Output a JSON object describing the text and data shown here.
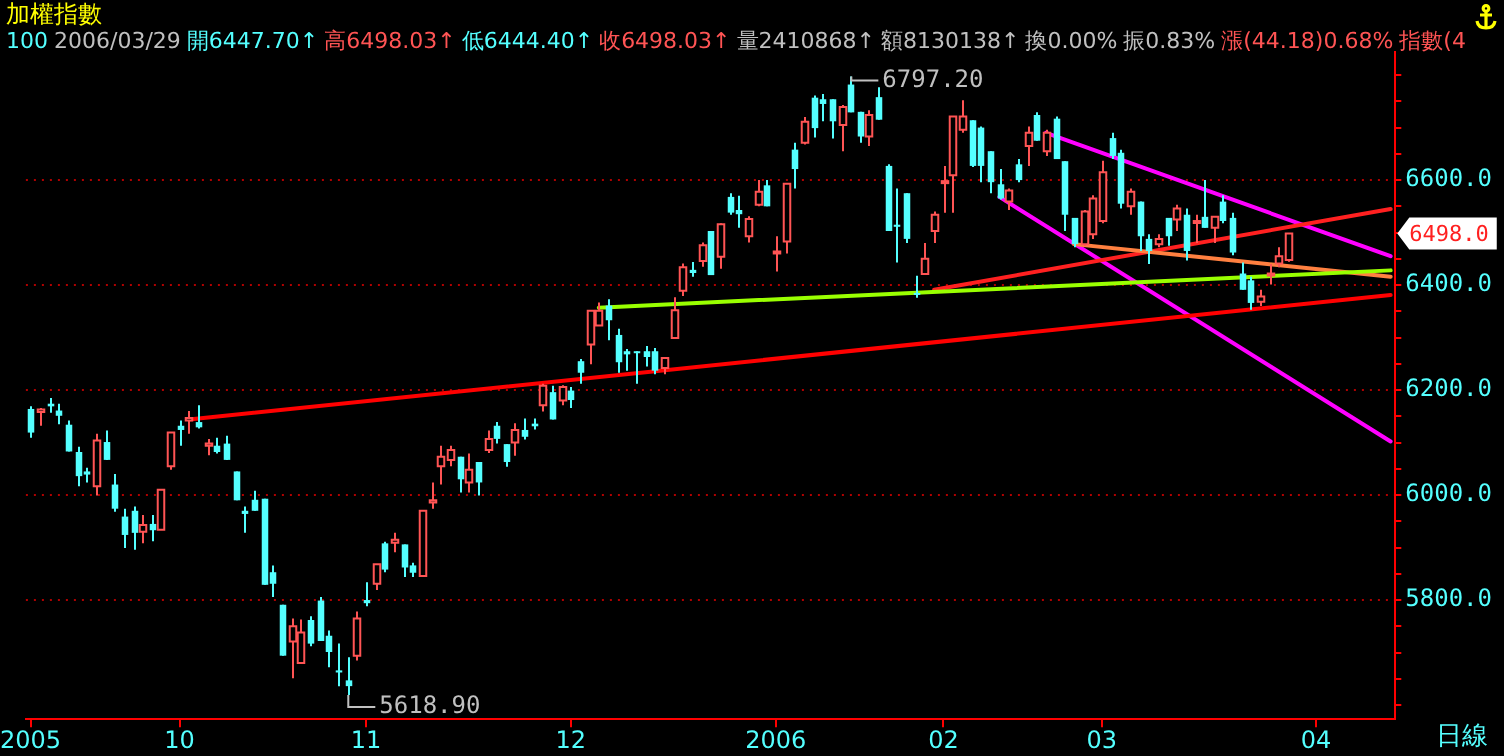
{
  "chart_data": {
    "type": "candlestick",
    "title": "加權指數",
    "xlabel": "日線",
    "subtitle": "100 2006/03/29 開6447.70↑高6498.03↑低6444.40↑收6498.03↑量2410868↑額8130138↑換0.00% 振0.83% 漲(44.18)0.68% 指數(4",
    "annotations": [
      "6797.20",
      "5618.90",
      "6498.0"
    ],
    "categories": [
      "2005",
      null,
      null,
      null,
      null,
      null,
      null,
      null,
      null,
      null,
      null,
      null,
      null,
      null,
      null,
      null,
      "10",
      null,
      null,
      null,
      null,
      null,
      null,
      null,
      null,
      null,
      null,
      null,
      null,
      null,
      null,
      null,
      null,
      null,
      null,
      null,
      "11",
      null,
      null,
      null,
      null,
      null,
      null,
      null,
      null,
      null,
      null,
      null,
      null,
      null,
      null,
      null,
      null,
      null,
      null,
      null,
      null,
      null,
      "12",
      null,
      null,
      null,
      null,
      null,
      null,
      null,
      null,
      null,
      null,
      null,
      null,
      null,
      null,
      null,
      null,
      null,
      null,
      null,
      null,
      null,
      "2006",
      null,
      null,
      null,
      null,
      null,
      null,
      null,
      null,
      null,
      null,
      null,
      null,
      null,
      null,
      null,
      null,
      null,
      "02",
      null,
      null,
      null,
      null,
      null,
      null,
      null,
      null,
      null,
      null,
      null,
      null,
      null,
      null,
      null,
      null,
      "03",
      null,
      null,
      null,
      null,
      null,
      null,
      null,
      null,
      null,
      null,
      null,
      null,
      null,
      null,
      null,
      null,
      null,
      null,
      null,
      null,
      null,
      null,
      "04",
      null,
      null,
      null,
      null,
      null,
      null,
      null,
      null
    ],
    "ohlc": [
      [
        6164,
        6169,
        6109,
        6119
      ],
      [
        6158,
        6166,
        6132,
        6163
      ],
      [
        6174,
        6185,
        6157,
        6169
      ],
      [
        6161,
        6174,
        6135,
        6151
      ],
      [
        6134,
        6142,
        6083,
        6083
      ],
      [
        6082,
        6092,
        6017,
        6036
      ],
      [
        6045,
        6052,
        6024,
        6039
      ],
      [
        6017,
        6117,
        5999,
        6104
      ],
      [
        6101,
        6123,
        6067,
        6067
      ],
      [
        6020,
        6040,
        5968,
        5974
      ],
      [
        5959,
        5974,
        5899,
        5924
      ],
      [
        5970,
        5978,
        5896,
        5928
      ],
      [
        5930,
        5962,
        5908,
        5943
      ],
      [
        5945,
        5962,
        5912,
        5933
      ],
      [
        5934,
        6010,
        5934,
        6010
      ],
      [
        6055,
        6119,
        6048,
        6119
      ],
      [
        6132,
        6142,
        6094,
        6124
      ],
      [
        6142,
        6160,
        6117,
        6147
      ],
      [
        6139,
        6171,
        6127,
        6129
      ],
      [
        6094,
        6107,
        6076,
        6098
      ],
      [
        6094,
        6109,
        6079,
        6082
      ],
      [
        6098,
        6113,
        6067,
        6067
      ],
      [
        6045,
        6045,
        5990,
        5990
      ],
      [
        5970,
        5978,
        5928,
        5964
      ],
      [
        5991,
        6008,
        5970,
        5970
      ],
      [
        5993,
        5993,
        5829,
        5829
      ],
      [
        5853,
        5866,
        5806,
        5831
      ],
      [
        5791,
        5791,
        5694,
        5694
      ],
      [
        5721,
        5765,
        5651,
        5750
      ],
      [
        5680,
        5763,
        5680,
        5738
      ],
      [
        5762,
        5769,
        5712,
        5717
      ],
      [
        5799,
        5806,
        5722,
        5722
      ],
      [
        5732,
        5742,
        5672,
        5701
      ],
      [
        5666,
        5717,
        5636,
        5662
      ],
      [
        5647,
        5691,
        5618.9,
        5636
      ],
      [
        5694,
        5778,
        5685,
        5765
      ],
      [
        5800,
        5834,
        5788,
        5794
      ],
      [
        5831,
        5868,
        5819,
        5868
      ],
      [
        5908,
        5911,
        5853,
        5858
      ],
      [
        5909,
        5928,
        5891,
        5915
      ],
      [
        5906,
        5906,
        5844,
        5862
      ],
      [
        5866,
        5871,
        5844,
        5852
      ],
      [
        5846,
        5970,
        5846,
        5970
      ],
      [
        5986,
        6024,
        5974,
        5990
      ],
      [
        6055,
        6094,
        6020,
        6073
      ],
      [
        6067,
        6094,
        6055,
        6086
      ],
      [
        6073,
        6073,
        6005,
        6030
      ],
      [
        6024,
        6079,
        6005,
        6048
      ],
      [
        6063,
        6063,
        5999,
        6024
      ],
      [
        6086,
        6123,
        6080,
        6107
      ],
      [
        6132,
        6139,
        6098,
        6107
      ],
      [
        6097,
        6097,
        6054,
        6063
      ],
      [
        6100,
        6137,
        6075,
        6124
      ],
      [
        6124,
        6146,
        6106,
        6111
      ],
      [
        6136,
        6146,
        6125,
        6131
      ],
      [
        6171,
        6212,
        6159,
        6208
      ],
      [
        6196,
        6208,
        6144,
        6144
      ],
      [
        6180,
        6209,
        6171,
        6206
      ],
      [
        6199,
        6206,
        6166,
        6181
      ],
      [
        6255,
        6259,
        6212,
        6233
      ],
      [
        6287,
        6351,
        6249,
        6351
      ],
      [
        6323,
        6367,
        6323,
        6351
      ],
      [
        6361,
        6373,
        6295,
        6333
      ],
      [
        6305,
        6317,
        6233,
        6253
      ],
      [
        6274,
        6278,
        6237,
        6268
      ],
      [
        6274,
        6274,
        6212,
        6271
      ],
      [
        6274,
        6284,
        6245,
        6263
      ],
      [
        6274,
        6280,
        6230,
        6237
      ],
      [
        6242,
        6261,
        6230,
        6261
      ],
      [
        6299,
        6377,
        6299,
        6352
      ],
      [
        6389,
        6441,
        6379,
        6434
      ],
      [
        6429,
        6444,
        6416,
        6423
      ],
      [
        6446,
        6481,
        6435,
        6476
      ],
      [
        6503,
        6503,
        6419,
        6419
      ],
      [
        6454,
        6518,
        6431,
        6516
      ],
      [
        6568,
        6575,
        6534,
        6538
      ],
      [
        6543,
        6570,
        6509,
        6535
      ],
      [
        6493,
        6531,
        6481,
        6526
      ],
      [
        6553,
        6600,
        6550,
        6578
      ],
      [
        6590,
        6600,
        6550,
        6550
      ],
      [
        6462,
        6493,
        6426,
        6464
      ],
      [
        6483,
        6593,
        6460,
        6593
      ],
      [
        6658,
        6671,
        6584,
        6621
      ],
      [
        6671,
        6720,
        6668,
        6711
      ],
      [
        6757,
        6761,
        6681,
        6699
      ],
      [
        6754,
        6764,
        6712,
        6745
      ],
      [
        6754,
        6754,
        6679,
        6712
      ],
      [
        6705,
        6743,
        6655,
        6739
      ],
      [
        6782,
        6797.2,
        6729,
        6729
      ],
      [
        6730,
        6730,
        6671,
        6683
      ],
      [
        6683,
        6733,
        6665,
        6724
      ],
      [
        6758,
        6777,
        6715,
        6715
      ],
      [
        6627,
        6630,
        6503,
        6503
      ],
      [
        6515,
        6584,
        6443,
        6511
      ],
      [
        6575,
        6575,
        6480,
        6488
      ],
      [
        6385,
        6418,
        6376,
        6383
      ],
      [
        6421,
        6480,
        6421,
        6450
      ],
      [
        6503,
        6540,
        6480,
        6534
      ],
      [
        6595,
        6627,
        6538,
        6598
      ],
      [
        6609,
        6721,
        6538,
        6721
      ],
      [
        6696,
        6752,
        6690,
        6721
      ],
      [
        6714,
        6714,
        6625,
        6627
      ],
      [
        6700,
        6702,
        6596,
        6627
      ],
      [
        6655,
        6655,
        6575,
        6596
      ],
      [
        6592,
        6621,
        6563,
        6565
      ],
      [
        6559,
        6584,
        6543,
        6580
      ],
      [
        6630,
        6640,
        6596,
        6600
      ],
      [
        6665,
        6702,
        6627,
        6690
      ],
      [
        6724,
        6729,
        6675,
        6675
      ],
      [
        6655,
        6696,
        6646,
        6690
      ],
      [
        6717,
        6721,
        6640,
        6640
      ],
      [
        6636,
        6636,
        6503,
        6534
      ],
      [
        6528,
        6528,
        6472,
        6478
      ],
      [
        6478,
        6543,
        6475,
        6540
      ],
      [
        6497,
        6571,
        6488,
        6565
      ],
      [
        6522,
        6637,
        6518,
        6615
      ],
      [
        6680,
        6690,
        6640,
        6646
      ],
      [
        6652,
        6658,
        6546,
        6555
      ],
      [
        6550,
        6584,
        6534,
        6578
      ],
      [
        6559,
        6559,
        6465,
        6493
      ],
      [
        6488,
        6497,
        6440,
        6465
      ],
      [
        6478,
        6497,
        6472,
        6488
      ],
      [
        6528,
        6528,
        6475,
        6493
      ],
      [
        6525,
        6553,
        6503,
        6546
      ],
      [
        6534,
        6546,
        6447,
        6465
      ],
      [
        6519,
        6534,
        6480,
        6522
      ],
      [
        6530,
        6600,
        6509,
        6509
      ],
      [
        6509,
        6530,
        6480,
        6530
      ],
      [
        6559,
        6571,
        6518,
        6522
      ],
      [
        6528,
        6538,
        6457,
        6462
      ],
      [
        6422,
        6443,
        6391,
        6391
      ],
      [
        6409,
        6416,
        6353,
        6366
      ],
      [
        6368,
        6391,
        6360,
        6378
      ],
      [
        6420,
        6440,
        6401,
        6422
      ],
      [
        6441,
        6472,
        6434,
        6455
      ],
      [
        6447.7,
        6498.03,
        6444.4,
        6498.03
      ],
      null,
      null,
      null,
      null,
      null,
      null,
      null,
      null,
      null,
      null,
      null
    ],
    "series": [
      {
        "type": "line",
        "color": "#ff0000",
        "values": [
          null,
          null,
          null,
          null,
          null,
          null,
          null,
          null,
          null,
          null,
          null,
          null,
          null,
          null,
          null,
          null,
          null,
          6144,
          null,
          null,
          null,
          null,
          null,
          null,
          null,
          null,
          null,
          null,
          null,
          null,
          null,
          null,
          null,
          null,
          null,
          null,
          null,
          null,
          null,
          null,
          null,
          null,
          null,
          null,
          null,
          null,
          null,
          null,
          null,
          null,
          null,
          null,
          null,
          null,
          null,
          null,
          null,
          null,
          null,
          null,
          null,
          null,
          null,
          null,
          null,
          null,
          null,
          null,
          null,
          null,
          null,
          null,
          null,
          null,
          null,
          null,
          null,
          null,
          null,
          null,
          null,
          null,
          null,
          null,
          null,
          null,
          null,
          null,
          null,
          null,
          null,
          null,
          null,
          null,
          null,
          null,
          null,
          null,
          null,
          null,
          null,
          null,
          null,
          null,
          null,
          null,
          null,
          null,
          null,
          null,
          null,
          null,
          null,
          null,
          null,
          null,
          null,
          null,
          null,
          null,
          null,
          null,
          null,
          null,
          null,
          null,
          null,
          null,
          null,
          null,
          null,
          null,
          null,
          null,
          null,
          null,
          null,
          null,
          null,
          null,
          null,
          null,
          null,
          null,
          null,
          null,
          6381
        ]
      },
      {
        "type": "line",
        "color": "#99ff00",
        "values": [
          null,
          null,
          null,
          null,
          null,
          null,
          null,
          null,
          null,
          null,
          null,
          null,
          null,
          null,
          null,
          null,
          null,
          null,
          null,
          null,
          null,
          null,
          null,
          null,
          null,
          null,
          null,
          null,
          null,
          null,
          null,
          null,
          null,
          null,
          null,
          null,
          null,
          null,
          null,
          null,
          null,
          null,
          null,
          null,
          null,
          null,
          null,
          null,
          null,
          null,
          null,
          null,
          null,
          null,
          null,
          null,
          null,
          null,
          null,
          null,
          null,
          6357,
          null,
          null,
          null,
          null,
          null,
          null,
          null,
          null,
          null,
          null,
          null,
          null,
          null,
          null,
          null,
          null,
          null,
          null,
          null,
          null,
          null,
          null,
          null,
          null,
          null,
          null,
          null,
          null,
          null,
          null,
          null,
          null,
          null,
          null,
          null,
          null,
          null,
          null,
          null,
          null,
          null,
          null,
          null,
          null,
          null,
          null,
          null,
          null,
          null,
          null,
          null,
          null,
          null,
          null,
          null,
          null,
          null,
          null,
          null,
          null,
          null,
          null,
          null,
          null,
          null,
          null,
          null,
          null,
          null,
          null,
          null,
          null,
          null,
          null,
          null,
          null,
          null,
          null,
          null,
          null,
          null,
          null,
          null,
          null,
          6428
        ]
      },
      {
        "type": "line",
        "color": "#ff8040",
        "values": [
          null,
          null,
          null,
          null,
          null,
          null,
          null,
          null,
          null,
          null,
          null,
          null,
          null,
          null,
          null,
          null,
          null,
          null,
          null,
          null,
          null,
          null,
          null,
          null,
          null,
          null,
          null,
          null,
          null,
          null,
          null,
          null,
          null,
          null,
          null,
          null,
          null,
          null,
          null,
          null,
          null,
          null,
          null,
          null,
          null,
          null,
          null,
          null,
          null,
          null,
          null,
          null,
          null,
          null,
          null,
          null,
          null,
          null,
          null,
          null,
          null,
          null,
          null,
          null,
          null,
          null,
          null,
          null,
          null,
          null,
          null,
          null,
          null,
          null,
          null,
          null,
          null,
          null,
          null,
          null,
          null,
          null,
          null,
          null,
          null,
          null,
          null,
          null,
          null,
          null,
          null,
          null,
          null,
          null,
          null,
          null,
          null,
          null,
          null,
          null,
          null,
          null,
          null,
          null,
          null,
          null,
          null,
          null,
          null,
          null,
          null,
          null,
          6478,
          null,
          null,
          null,
          null,
          null,
          null,
          null,
          null,
          null,
          null,
          null,
          null,
          null,
          null,
          null,
          null,
          null,
          null,
          null,
          null,
          null,
          null,
          null,
          null,
          null,
          null,
          null,
          null,
          null,
          null,
          null,
          null,
          null,
          6416
        ]
      },
      {
        "type": "line",
        "color": "#ff2020",
        "values": [
          null,
          null,
          null,
          null,
          null,
          null,
          null,
          null,
          null,
          null,
          null,
          null,
          null,
          null,
          null,
          null,
          null,
          null,
          null,
          null,
          null,
          null,
          null,
          null,
          null,
          null,
          null,
          null,
          null,
          null,
          null,
          null,
          null,
          null,
          null,
          null,
          null,
          null,
          null,
          null,
          null,
          null,
          null,
          null,
          null,
          null,
          null,
          null,
          null,
          null,
          null,
          null,
          null,
          null,
          null,
          null,
          null,
          null,
          null,
          null,
          null,
          null,
          null,
          null,
          null,
          null,
          null,
          null,
          null,
          null,
          null,
          null,
          null,
          null,
          null,
          null,
          null,
          null,
          null,
          null,
          null,
          null,
          null,
          null,
          null,
          null,
          null,
          null,
          null,
          null,
          null,
          null,
          null,
          null,
          null,
          null,
          null,
          6391,
          null,
          null,
          null,
          null,
          null,
          null,
          null,
          null,
          null,
          null,
          null,
          null,
          null,
          null,
          null,
          null,
          null,
          null,
          null,
          null,
          null,
          null,
          null,
          null,
          null,
          null,
          null,
          null,
          null,
          null,
          null,
          null,
          null,
          null,
          null,
          null,
          null,
          null,
          null,
          null,
          null,
          null,
          null,
          null,
          null,
          null,
          null,
          null,
          6545
        ]
      },
      {
        "type": "line",
        "color": "#ff00ff",
        "values": [
          null,
          null,
          null,
          null,
          null,
          null,
          null,
          null,
          null,
          null,
          null,
          null,
          null,
          null,
          null,
          null,
          null,
          null,
          null,
          null,
          null,
          null,
          null,
          null,
          null,
          null,
          null,
          null,
          null,
          null,
          null,
          null,
          null,
          null,
          null,
          null,
          null,
          null,
          null,
          null,
          null,
          null,
          null,
          null,
          null,
          null,
          null,
          null,
          null,
          null,
          null,
          null,
          null,
          null,
          null,
          null,
          null,
          null,
          null,
          null,
          null,
          null,
          null,
          null,
          null,
          null,
          null,
          null,
          null,
          null,
          null,
          null,
          null,
          null,
          null,
          null,
          null,
          null,
          null,
          null,
          null,
          null,
          null,
          null,
          null,
          null,
          null,
          null,
          null,
          null,
          null,
          null,
          null,
          null,
          null,
          null,
          null,
          null,
          null,
          null,
          null,
          null,
          null,
          null,
          null,
          null,
          null,
          null,
          null,
          6690,
          null,
          null,
          null,
          null,
          null,
          null,
          null,
          null,
          null,
          null,
          null,
          null,
          null,
          null,
          null,
          null,
          null,
          null,
          null,
          null,
          null,
          null,
          null,
          null,
          null,
          null,
          null,
          null,
          null,
          null,
          null,
          null,
          null,
          null,
          null,
          null,
          6455
        ]
      },
      {
        "type": "line",
        "color": "#ff00ff",
        "values": [
          null,
          null,
          null,
          null,
          null,
          null,
          null,
          null,
          null,
          null,
          null,
          null,
          null,
          null,
          null,
          null,
          null,
          null,
          null,
          null,
          null,
          null,
          null,
          null,
          null,
          null,
          null,
          null,
          null,
          null,
          null,
          null,
          null,
          null,
          null,
          null,
          null,
          null,
          null,
          null,
          null,
          null,
          null,
          null,
          null,
          null,
          null,
          null,
          null,
          null,
          null,
          null,
          null,
          null,
          null,
          null,
          null,
          null,
          null,
          null,
          null,
          null,
          null,
          null,
          null,
          null,
          null,
          null,
          null,
          null,
          null,
          null,
          null,
          null,
          null,
          null,
          null,
          null,
          null,
          null,
          null,
          null,
          null,
          null,
          null,
          null,
          null,
          null,
          null,
          null,
          null,
          null,
          null,
          null,
          null,
          null,
          null,
          null,
          null,
          null,
          null,
          null,
          null,
          null,
          6568,
          null,
          null,
          null,
          null,
          null,
          null,
          null,
          null,
          null,
          null,
          null,
          null,
          null,
          null,
          null,
          null,
          null,
          null,
          null,
          null,
          null,
          null,
          null,
          null,
          null,
          null,
          null,
          null,
          null,
          null,
          null,
          null,
          null,
          null,
          null,
          null,
          null,
          null,
          null,
          null,
          null,
          6102
        ]
      }
    ],
    "ylim": [
      5573,
      6844
    ],
    "yticks": [
      {
        "value": 5600,
        "label": null
      },
      {
        "value": 5650,
        "label": null
      },
      {
        "value": 5700,
        "label": null
      },
      {
        "value": 5750,
        "label": null
      },
      {
        "value": 5800,
        "label": "5800.0"
      },
      {
        "value": 5850,
        "label": null
      },
      {
        "value": 5900,
        "label": null
      },
      {
        "value": 5950,
        "label": null
      },
      {
        "value": 6000,
        "label": "6000.0"
      },
      {
        "value": 6050,
        "label": null
      },
      {
        "value": 6100,
        "label": null
      },
      {
        "value": 6150,
        "label": null
      },
      {
        "value": 6200,
        "label": "6200.0"
      },
      {
        "value": 6250,
        "label": null
      },
      {
        "value": 6300,
        "label": null
      },
      {
        "value": 6350,
        "label": null
      },
      {
        "value": 6400,
        "label": "6400.0"
      },
      {
        "value": 6450,
        "label": null
      },
      {
        "value": 6500,
        "label": null
      },
      {
        "value": 6550,
        "label": null
      },
      {
        "value": 6600,
        "label": "6600.0"
      },
      {
        "value": 6650,
        "label": null
      },
      {
        "value": 6700,
        "label": null
      },
      {
        "value": 6750,
        "label": null
      },
      {
        "value": 6800,
        "label": null
      }
    ],
    "grid": "y",
    "legend": false
  }
}
